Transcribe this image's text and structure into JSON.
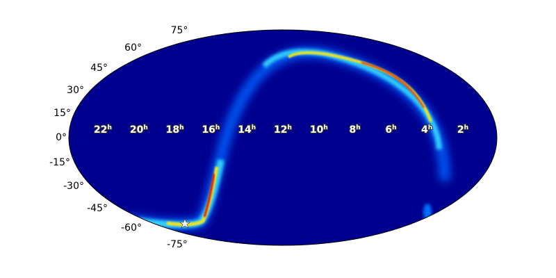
{
  "map": {
    "lat_labels": [
      "75°",
      "60°",
      "45°",
      "30°",
      "15°",
      "0°",
      "-15°",
      "-30°",
      "-45°",
      "-60°",
      "-75°"
    ],
    "ra_labels": [
      {
        "number": "22",
        "unit": "h"
      },
      {
        "number": "20",
        "unit": "h"
      },
      {
        "number": "18",
        "unit": "h"
      },
      {
        "number": "16",
        "unit": "h"
      },
      {
        "number": "14",
        "unit": "h"
      },
      {
        "number": "12",
        "unit": "h"
      },
      {
        "number": "10",
        "unit": "h"
      },
      {
        "number": "8",
        "unit": "h"
      },
      {
        "number": "6",
        "unit": "h"
      },
      {
        "number": "4",
        "unit": "h"
      },
      {
        "number": "2",
        "unit": "h"
      }
    ]
  }
}
